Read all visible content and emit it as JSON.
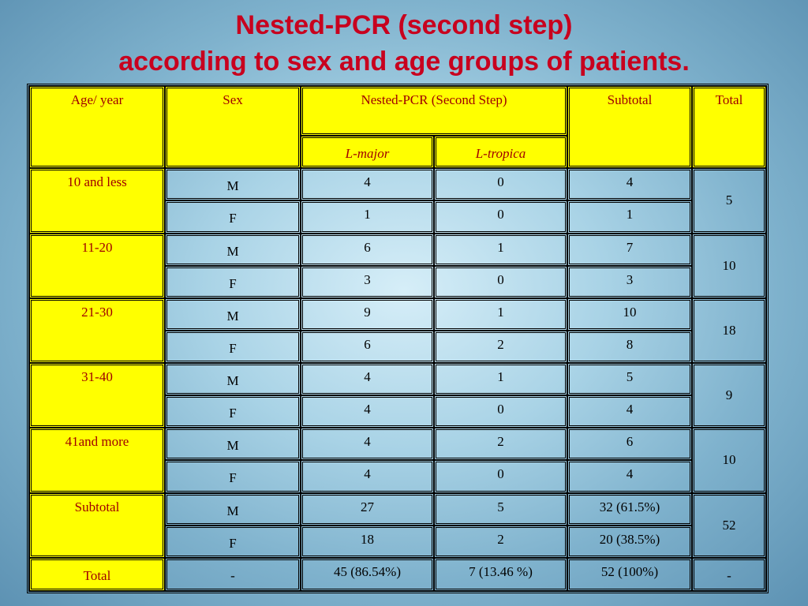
{
  "title": {
    "line1": "Nested-PCR (second step)",
    "line2": "according to sex and age groups of patients."
  },
  "table": {
    "headers": {
      "age": "Age/ year",
      "sex": "Sex",
      "nested": "Nested-PCR (Second Step)",
      "subtotal": "Subtotal",
      "total": "Total",
      "lmajor": "L-major",
      "ltropica": "L-tropica"
    },
    "groups": [
      {
        "age": "10 and less",
        "total": "5",
        "rows": [
          {
            "sex": "M",
            "lmajor": "4",
            "ltropica": "0",
            "subtotal": "4"
          },
          {
            "sex": "F",
            "lmajor": "1",
            "ltropica": "0",
            "subtotal": "1"
          }
        ]
      },
      {
        "age": "11-20",
        "total": "10",
        "rows": [
          {
            "sex": "M",
            "lmajor": "6",
            "ltropica": "1",
            "subtotal": "7"
          },
          {
            "sex": "F",
            "lmajor": "3",
            "ltropica": "0",
            "subtotal": "3"
          }
        ]
      },
      {
        "age": "21-30",
        "total": "18",
        "rows": [
          {
            "sex": "M",
            "lmajor": "9",
            "ltropica": "1",
            "subtotal": "10"
          },
          {
            "sex": "F",
            "lmajor": "6",
            "ltropica": "2",
            "subtotal": "8"
          }
        ]
      },
      {
        "age": "31-40",
        "total": "9",
        "rows": [
          {
            "sex": "M",
            "lmajor": "4",
            "ltropica": "1",
            "subtotal": "5"
          },
          {
            "sex": "F",
            "lmajor": "4",
            "ltropica": "0",
            "subtotal": "4"
          }
        ]
      },
      {
        "age": "41and more",
        "total": "10",
        "rows": [
          {
            "sex": "M",
            "lmajor": "4",
            "ltropica": "2",
            "subtotal": "6"
          },
          {
            "sex": "F",
            "lmajor": "4",
            "ltropica": "0",
            "subtotal": "4"
          }
        ]
      },
      {
        "age": "Subtotal",
        "total": "52",
        "rows": [
          {
            "sex": "M",
            "lmajor": "27",
            "ltropica": "5",
            "subtotal": "32 (61.5%)"
          },
          {
            "sex": "F",
            "lmajor": "18",
            "ltropica": "2",
            "subtotal": "20 (38.5%)"
          }
        ]
      }
    ],
    "total_row": {
      "label": "Total",
      "sex": "-",
      "lmajor": "45 (86.54%)",
      "ltropica": "7 (13.46 %)",
      "subtotal": "52 (100%)",
      "total": "-"
    }
  },
  "colors": {
    "title": "#c8001e",
    "header_fill": "#ffff00",
    "header_text": "#a00000"
  }
}
